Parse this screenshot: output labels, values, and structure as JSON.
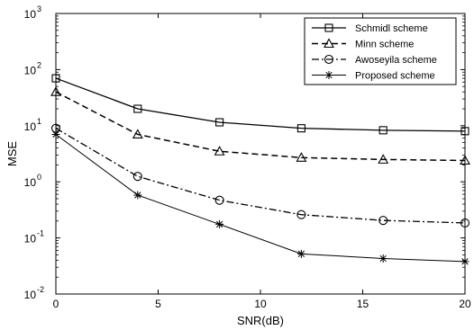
{
  "chart_data": {
    "type": "line",
    "title": "",
    "xlabel": "SNR(dB)",
    "ylabel": "MSE",
    "xscale": "linear",
    "yscale": "log",
    "xlim": [
      0,
      20
    ],
    "ylim": [
      0.01,
      1000
    ],
    "x_ticks": [
      0,
      5,
      10,
      15,
      20
    ],
    "x_tick_labels": [
      "0",
      "5",
      "10",
      "15",
      "20"
    ],
    "y_ticks": [
      0.01,
      0.1,
      1,
      10,
      100,
      1000
    ],
    "y_tick_labels": [
      {
        "base": "10",
        "exp": "-2"
      },
      {
        "base": "10",
        "exp": "-1"
      },
      {
        "base": "10",
        "exp": "0"
      },
      {
        "base": "10",
        "exp": "1"
      },
      {
        "base": "10",
        "exp": "2"
      },
      {
        "base": "10",
        "exp": "3"
      }
    ],
    "grid": false,
    "legend_position": "top-right",
    "x": [
      0,
      4,
      8,
      12,
      16,
      20
    ],
    "series": [
      {
        "name": "Schmidl scheme",
        "marker": "square",
        "dash": "solid",
        "color": "#000000",
        "values": [
          70,
          20,
          11.5,
          9,
          8.3,
          8
        ]
      },
      {
        "name": "Minn scheme",
        "marker": "triangle",
        "dash": "dashed",
        "color": "#000000",
        "values": [
          40,
          7,
          3.5,
          2.7,
          2.5,
          2.4
        ]
      },
      {
        "name": "Awoseyila scheme",
        "marker": "circle",
        "dash": "dashdot",
        "color": "#000000",
        "values": [
          9,
          1.25,
          0.47,
          0.26,
          0.205,
          0.185
        ]
      },
      {
        "name": "Proposed scheme",
        "marker": "star",
        "dash": "solid-thin",
        "color": "#000000",
        "values": [
          7,
          0.58,
          0.175,
          0.052,
          0.043,
          0.038
        ]
      }
    ]
  }
}
